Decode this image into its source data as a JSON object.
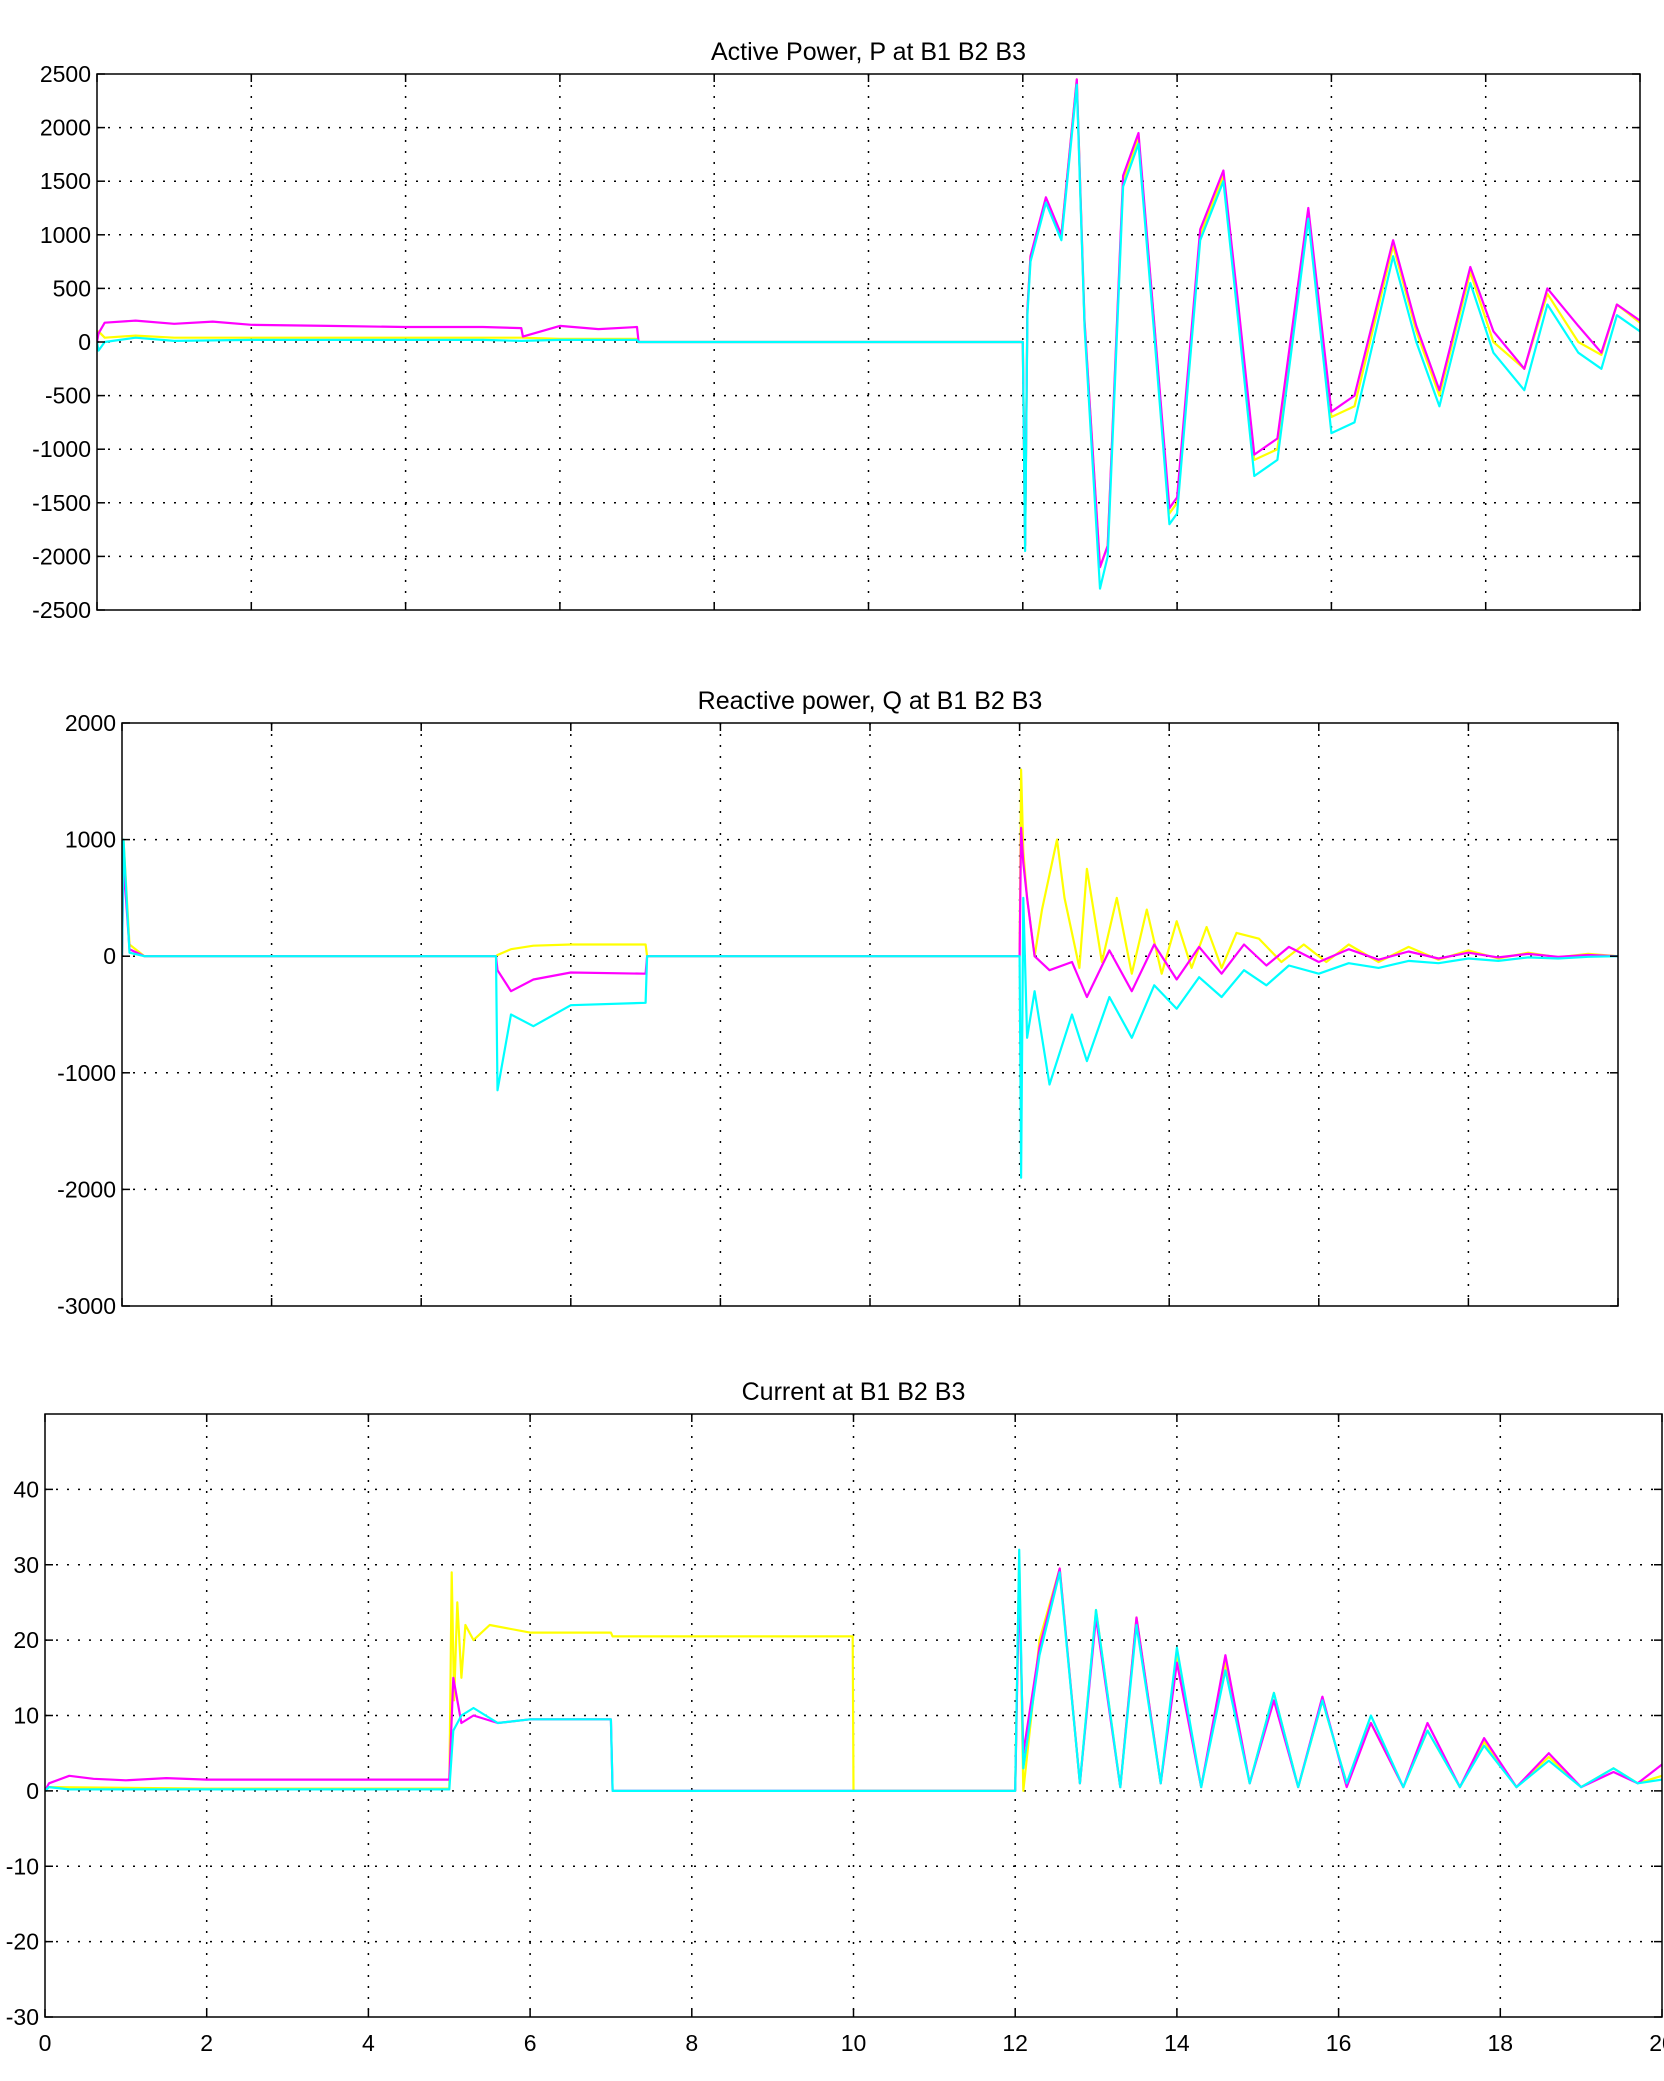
{
  "chart_data": [
    {
      "type": "line",
      "title": "Active Power, P at B1 B2 B3",
      "xlabel": "",
      "ylabel": "",
      "xlim": [
        0,
        20
      ],
      "ylim": [
        -2500,
        2500
      ],
      "x_ticks": [
        0,
        2,
        4,
        6,
        8,
        10,
        12,
        14,
        16,
        18,
        20
      ],
      "y_ticks": [
        -2500,
        -2000,
        -1500,
        -1000,
        -500,
        0,
        500,
        1000,
        1500,
        2000,
        2500
      ],
      "x_tick_labels_shown": false,
      "grid": true,
      "series": [
        {
          "color": "#ffff00",
          "x": [
            0,
            0.02,
            0.1,
            0.5,
            1,
            2,
            3,
            4,
            5,
            5.5,
            6,
            7,
            7.02,
            8,
            10,
            11.99,
            12,
            12.03,
            12.06,
            12.1,
            12.3,
            12.5,
            12.7,
            12.8,
            13.0,
            13.1,
            13.3,
            13.5,
            13.7,
            13.9,
            14.0,
            14.3,
            14.6,
            14.8,
            15.0,
            15.3,
            15.7,
            16.0,
            16.3,
            16.8,
            17.1,
            17.4,
            17.8,
            18.1,
            18.5,
            18.8,
            19.2,
            19.5,
            19.7,
            20
          ],
          "y": [
            0,
            100,
            40,
            60,
            40,
            40,
            40,
            40,
            40,
            40,
            30,
            30,
            0,
            0,
            0,
            0,
            0,
            -1900,
            300,
            800,
            1300,
            1000,
            2450,
            200,
            -2100,
            -1900,
            1500,
            1900,
            200,
            -1600,
            -1500,
            1000,
            1550,
            200,
            -1100,
            -1000,
            1200,
            -700,
            -600,
            900,
            100,
            -500,
            650,
            0,
            -250,
            450,
            0,
            -120,
            350,
            180
          ]
        },
        {
          "color": "#ff00ff",
          "x": [
            0,
            0.02,
            0.1,
            0.5,
            1,
            1.5,
            2,
            3,
            4,
            5,
            5.5,
            5.52,
            6,
            6.5,
            7,
            7.02,
            8,
            10,
            11.99,
            12,
            12.03,
            12.06,
            12.1,
            12.3,
            12.5,
            12.7,
            12.8,
            13.0,
            13.1,
            13.3,
            13.5,
            13.7,
            13.9,
            14.0,
            14.3,
            14.6,
            14.8,
            15.0,
            15.3,
            15.7,
            16.0,
            16.3,
            16.8,
            17.1,
            17.4,
            17.8,
            18.1,
            18.5,
            18.8,
            19.2,
            19.5,
            19.7,
            20
          ],
          "y": [
            0,
            80,
            180,
            200,
            170,
            190,
            160,
            150,
            140,
            140,
            130,
            50,
            150,
            120,
            140,
            0,
            0,
            0,
            0,
            0,
            -1900,
            300,
            800,
            1350,
            1000,
            2450,
            200,
            -2100,
            -1900,
            1550,
            1950,
            200,
            -1550,
            -1450,
            1050,
            1600,
            300,
            -1050,
            -900,
            1250,
            -650,
            -500,
            950,
            150,
            -450,
            700,
            100,
            -250,
            500,
            150,
            -100,
            350,
            200
          ]
        },
        {
          "color": "#00ffff",
          "x": [
            0,
            0.02,
            0.1,
            0.5,
            1,
            2,
            3,
            4,
            5,
            5.5,
            6,
            7,
            7.02,
            8,
            10,
            11.99,
            12,
            12.03,
            12.06,
            12.1,
            12.3,
            12.5,
            12.7,
            12.8,
            13.0,
            13.1,
            13.3,
            13.5,
            13.7,
            13.9,
            14.0,
            14.3,
            14.6,
            14.8,
            15.0,
            15.3,
            15.7,
            16.0,
            16.3,
            16.8,
            17.1,
            17.4,
            17.8,
            18.1,
            18.5,
            18.8,
            19.2,
            19.5,
            19.7,
            20
          ],
          "y": [
            0,
            -80,
            0,
            40,
            10,
            20,
            20,
            20,
            20,
            10,
            20,
            20,
            0,
            0,
            0,
            0,
            0,
            -1950,
            250,
            750,
            1300,
            950,
            2400,
            150,
            -2300,
            -2000,
            1450,
            1850,
            100,
            -1700,
            -1600,
            950,
            1500,
            150,
            -1250,
            -1100,
            1150,
            -850,
            -750,
            800,
            0,
            -600,
            550,
            -100,
            -450,
            350,
            -100,
            -250,
            250,
            100
          ]
        }
      ]
    },
    {
      "type": "line",
      "title": "Reactive power, Q at B1 B2 B3",
      "xlabel": "",
      "ylabel": "",
      "xlim": [
        0,
        20
      ],
      "ylim": [
        -3000,
        2000
      ],
      "x_ticks": [
        0,
        2,
        4,
        6,
        8,
        10,
        12,
        14,
        16,
        18,
        20
      ],
      "y_ticks": [
        -3000,
        -2000,
        -1000,
        0,
        1000,
        2000
      ],
      "x_tick_labels_shown": false,
      "grid": true,
      "series": [
        {
          "color": "#ffff00",
          "x": [
            0,
            0.02,
            0.1,
            0.3,
            5,
            5.02,
            5.2,
            5.5,
            6,
            7,
            7.02,
            10,
            11.99,
            12,
            12.02,
            12.05,
            12.1,
            12.2,
            12.3,
            12.5,
            12.6,
            12.8,
            12.9,
            13.1,
            13.3,
            13.5,
            13.7,
            13.9,
            14.1,
            14.3,
            14.5,
            14.7,
            14.9,
            15.2,
            15.5,
            15.8,
            16.1,
            16.4,
            16.8,
            17.2,
            17.6,
            18.0,
            18.4,
            18.8,
            19.2,
            19.6,
            20
          ],
          "y": [
            0,
            1000,
            100,
            0,
            0,
            10,
            60,
            90,
            100,
            100,
            0,
            0,
            0,
            0,
            1600,
            900,
            500,
            0,
            400,
            1000,
            500,
            -100,
            750,
            -50,
            500,
            -150,
            400,
            -150,
            300,
            -100,
            250,
            -100,
            200,
            150,
            -50,
            100,
            -50,
            100,
            -50,
            80,
            -30,
            50,
            -20,
            30,
            -10,
            20,
            0
          ]
        },
        {
          "color": "#ff00ff",
          "x": [
            0,
            0.02,
            0.1,
            0.3,
            5,
            5.02,
            5.2,
            5.5,
            6,
            7,
            7.02,
            10,
            11.99,
            12,
            12.02,
            12.05,
            12.1,
            12.2,
            12.4,
            12.7,
            12.9,
            13.2,
            13.5,
            13.8,
            14.1,
            14.4,
            14.7,
            15.0,
            15.3,
            15.6,
            16.0,
            16.4,
            16.8,
            17.2,
            17.6,
            18.0,
            18.4,
            18.8,
            19.2,
            19.6,
            20
          ],
          "y": [
            0,
            800,
            60,
            0,
            0,
            -120,
            -300,
            -200,
            -140,
            -150,
            0,
            0,
            0,
            0,
            1100,
            800,
            500,
            0,
            -120,
            -50,
            -350,
            50,
            -300,
            100,
            -200,
            80,
            -150,
            100,
            -80,
            80,
            -50,
            60,
            -30,
            40,
            -20,
            30,
            -10,
            20,
            -5,
            10,
            0
          ]
        },
        {
          "color": "#00ffff",
          "x": [
            0,
            0.02,
            0.1,
            0.3,
            5,
            5.02,
            5.2,
            5.5,
            6,
            7,
            7.02,
            10,
            11.99,
            12,
            12.02,
            12.05,
            12.1,
            12.2,
            12.4,
            12.7,
            12.9,
            13.2,
            13.5,
            13.8,
            14.1,
            14.4,
            14.7,
            15.0,
            15.3,
            15.6,
            16.0,
            16.4,
            16.8,
            17.2,
            17.6,
            18.0,
            18.4,
            18.8,
            19.2,
            19.6,
            20
          ],
          "y": [
            0,
            1000,
            30,
            0,
            0,
            -1150,
            -500,
            -600,
            -420,
            -400,
            0,
            0,
            0,
            0,
            -1900,
            500,
            -700,
            -300,
            -1100,
            -500,
            -900,
            -350,
            -700,
            -250,
            -450,
            -180,
            -350,
            -120,
            -250,
            -80,
            -150,
            -60,
            -100,
            -40,
            -60,
            -20,
            -40,
            -10,
            -20,
            -5,
            0
          ]
        }
      ]
    },
    {
      "type": "line",
      "title": "Current at B1 B2 B3",
      "xlabel": "",
      "ylabel": "",
      "xlim": [
        0,
        20
      ],
      "ylim": [
        -30,
        50
      ],
      "x_ticks": [
        0,
        2,
        4,
        6,
        8,
        10,
        12,
        14,
        16,
        18,
        20
      ],
      "x_tick_labels": [
        "0",
        "2",
        "4",
        "6",
        "8",
        "10",
        "12",
        "14",
        "16",
        "18",
        "20"
      ],
      "y_ticks": [
        -30,
        -20,
        -10,
        0,
        10,
        20,
        30,
        40
      ],
      "y_tick_labels": [
        "-30",
        "-20",
        "-10",
        "0",
        "10",
        "20",
        "30",
        "40"
      ],
      "grid": true,
      "series": [
        {
          "color": "#ffff00",
          "x": [
            0,
            0.05,
            2,
            4.99,
            5,
            5.03,
            5.06,
            5.1,
            5.15,
            5.2,
            5.3,
            5.5,
            6,
            7,
            7.02,
            8,
            9.99,
            10,
            11.99,
            12,
            12.05,
            12.1,
            12.3,
            12.55,
            12.8,
            13.0,
            13.3,
            13.5,
            13.8,
            14.0,
            14.3,
            14.6,
            14.9,
            15.2,
            15.5,
            15.8,
            16.1,
            16.4,
            16.8,
            17.1,
            17.5,
            17.8,
            18.2,
            18.6,
            19.0,
            19.4,
            19.7,
            20
          ],
          "y": [
            0,
            0.5,
            0.3,
            0.3,
            0.3,
            29,
            12,
            25,
            15,
            22,
            20,
            22,
            21,
            21,
            20.5,
            20.5,
            20.5,
            0,
            0,
            0,
            31,
            0,
            20,
            29.5,
            1,
            24,
            0.5,
            23,
            1,
            18,
            0.5,
            17,
            1,
            13,
            0.5,
            12,
            1,
            9,
            0.5,
            8,
            0.5,
            6.5,
            0.5,
            4.5,
            0.5,
            3,
            1,
            2
          ]
        },
        {
          "color": "#ff00ff",
          "x": [
            0,
            0.05,
            0.3,
            0.6,
            1,
            1.5,
            2,
            3,
            4,
            4.99,
            5,
            5.05,
            5.15,
            5.3,
            5.6,
            6,
            7,
            7.02,
            8,
            10,
            11.99,
            12,
            12.05,
            12.1,
            12.3,
            12.55,
            12.8,
            13.0,
            13.3,
            13.5,
            13.8,
            14.0,
            14.3,
            14.6,
            14.9,
            15.2,
            15.5,
            15.8,
            16.1,
            16.4,
            16.8,
            17.1,
            17.5,
            17.8,
            18.2,
            18.6,
            19.0,
            19.4,
            19.7,
            20
          ],
          "y": [
            0,
            1,
            2,
            1.6,
            1.4,
            1.7,
            1.5,
            1.5,
            1.5,
            1.5,
            1.5,
            15,
            9,
            10,
            9,
            9.5,
            9.5,
            0,
            0,
            0,
            0,
            0,
            28,
            5,
            19,
            29.5,
            1,
            23,
            0.5,
            23,
            1,
            17,
            0.5,
            18,
            1,
            12,
            0.5,
            12.5,
            0.5,
            9,
            0.5,
            9,
            0.5,
            7,
            0.5,
            5,
            0.5,
            2.5,
            1,
            3.5
          ]
        },
        {
          "color": "#00ffff",
          "x": [
            0,
            0.05,
            0.3,
            1,
            2,
            3,
            4,
            4.99,
            5,
            5.05,
            5.15,
            5.3,
            5.6,
            6,
            7,
            7.02,
            8,
            10,
            11.99,
            12,
            12.05,
            12.1,
            12.3,
            12.55,
            12.8,
            13.0,
            13.3,
            13.5,
            13.8,
            14.0,
            14.3,
            14.6,
            14.9,
            15.2,
            15.5,
            15.8,
            16.1,
            16.4,
            16.8,
            17.1,
            17.5,
            17.8,
            18.2,
            18.6,
            19.0,
            19.4,
            19.7,
            20
          ],
          "y": [
            0,
            0.5,
            0.2,
            0.2,
            0.2,
            0.2,
            0.2,
            0.2,
            0.2,
            8,
            10,
            11,
            9,
            9.5,
            9.5,
            0,
            0,
            0,
            0,
            0,
            32,
            3,
            18,
            29,
            1,
            24,
            0.5,
            22,
            1,
            19,
            0.5,
            16,
            1,
            13,
            0.5,
            12,
            1,
            10,
            0.5,
            8,
            0.5,
            6,
            0.5,
            4,
            0.5,
            3,
            1,
            1.5
          ]
        }
      ]
    }
  ]
}
